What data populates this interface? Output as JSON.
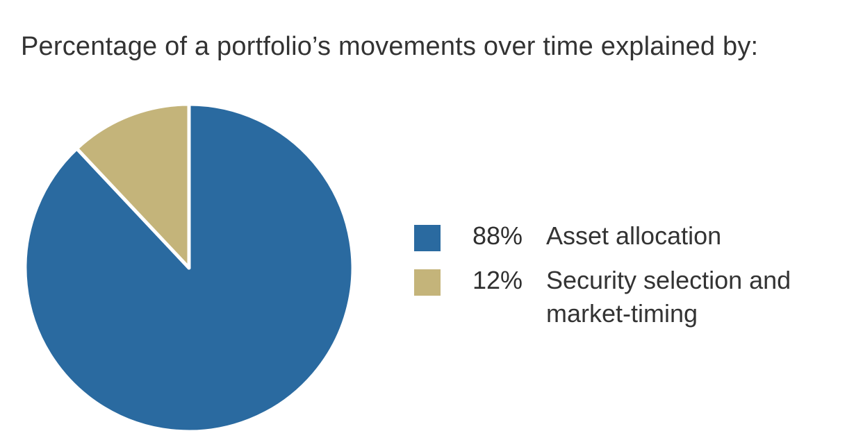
{
  "chart_data": {
    "type": "pie",
    "title": "Percentage of a portfolio’s movements over time explained by:",
    "series": [
      {
        "name": "",
        "values": [
          88,
          12
        ]
      }
    ],
    "categories": [
      "Asset allocation",
      "Security selection and market-timing"
    ],
    "value_labels": [
      "88%",
      "12%"
    ],
    "colors": [
      "#2a6aa0",
      "#c4b47a"
    ],
    "start_angle": "12 o'clock",
    "direction": "clockwise",
    "legend_position": "right"
  },
  "legend": {
    "items": [
      {
        "value": "88%",
        "label": "Asset allocation",
        "color": "#2a6aa0"
      },
      {
        "value": "12%",
        "label": "Security selection and market-timing",
        "color": "#c4b47a"
      }
    ]
  }
}
